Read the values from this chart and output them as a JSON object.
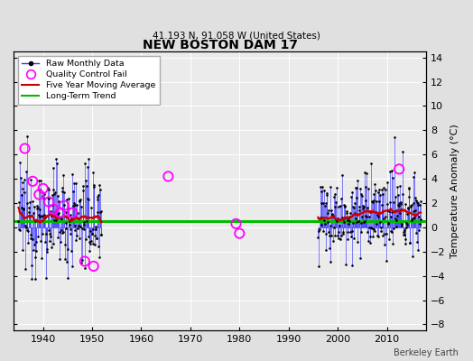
{
  "title": "NEW BOSTON DAM 17",
  "subtitle": "41.193 N, 91.058 W (United States)",
  "ylabel": "Temperature Anomaly (°C)",
  "credit": "Berkeley Earth",
  "ylim": [
    -8.5,
    14.5
  ],
  "xlim": [
    1934,
    2018
  ],
  "xticks": [
    1940,
    1950,
    1960,
    1970,
    1980,
    1990,
    2000,
    2010
  ],
  "yticks": [
    -8,
    -6,
    -4,
    -2,
    0,
    2,
    4,
    6,
    8,
    10,
    12,
    14
  ],
  "bg_color": "#e0e0e0",
  "plot_bg": "#ebebeb",
  "line_color": "#3333ff",
  "moving_avg_color": "#cc0000",
  "trend_color": "#00bb00",
  "qc_fail_color": "#ff00ff",
  "data_color": "#000000",
  "legend_entries": [
    "Raw Monthly Data",
    "Quality Control Fail",
    "Five Year Moving Average",
    "Long-Term Trend"
  ],
  "period1_start": 1935,
  "period1_end": 1952,
  "period2_start": 1996,
  "period2_end": 2017,
  "trend_y": 0.5,
  "qc_t": [
    1936.3,
    1937.9,
    1939.2,
    1940.0,
    1941.2,
    1942.1,
    1943.5,
    1944.3,
    1946.0,
    1948.5,
    1950.3,
    1965.5,
    1979.3,
    1980.0,
    2012.5
  ],
  "qc_v": [
    6.5,
    3.8,
    2.7,
    3.2,
    2.1,
    1.5,
    1.2,
    1.8,
    1.2,
    -2.8,
    -3.2,
    4.2,
    0.3,
    -0.5,
    4.8
  ]
}
